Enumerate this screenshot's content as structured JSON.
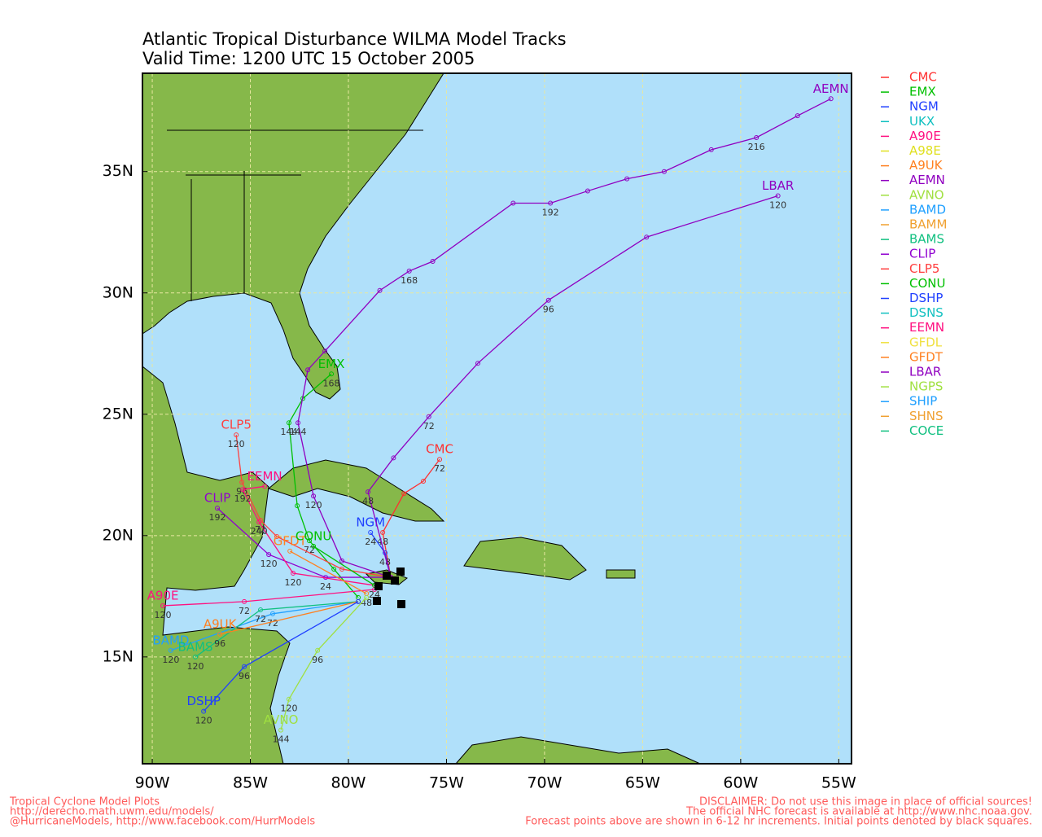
{
  "title": "Atlantic Tropical Disturbance WILMA Model Tracks",
  "subtitle": "Valid Time: 1200 UTC 15 October 2005",
  "map": {
    "type": "map",
    "xlim": [
      -90.5,
      -54.35
    ],
    "ylim": [
      10.6,
      39.05
    ],
    "xticks": [
      {
        "value": -90,
        "label": "90W"
      },
      {
        "value": -85,
        "label": "85W"
      },
      {
        "value": -80,
        "label": "80W"
      },
      {
        "value": -75,
        "label": "75W"
      },
      {
        "value": -70,
        "label": "70W"
      },
      {
        "value": -65,
        "label": "65W"
      },
      {
        "value": -60,
        "label": "60W"
      },
      {
        "value": -55,
        "label": "55W"
      }
    ],
    "yticks": [
      {
        "value": 15,
        "label": "15N"
      },
      {
        "value": 20,
        "label": "20N"
      },
      {
        "value": 25,
        "label": "25N"
      },
      {
        "value": 30,
        "label": "30N"
      },
      {
        "value": 35,
        "label": "35N"
      }
    ],
    "grid": true,
    "legend": [
      {
        "name": "CMC",
        "color": "#ff3030"
      },
      {
        "name": "EMX",
        "color": "#00c000"
      },
      {
        "name": "NGM",
        "color": "#2040ff"
      },
      {
        "name": "UKX",
        "color": "#10c0c0"
      },
      {
        "name": "A90E",
        "color": "#ff1080"
      },
      {
        "name": "A98E",
        "color": "#e0e020"
      },
      {
        "name": "A9UK",
        "color": "#ff8020"
      },
      {
        "name": "AEMN",
        "color": "#9000c0"
      },
      {
        "name": "AVNO",
        "color": "#a0e040"
      },
      {
        "name": "BAMD",
        "color": "#20a0ff"
      },
      {
        "name": "BAMM",
        "color": "#f0a030"
      },
      {
        "name": "BAMS",
        "color": "#10c080"
      },
      {
        "name": "CLIP",
        "color": "#9000d0"
      },
      {
        "name": "CLP5",
        "color": "#ff4040"
      },
      {
        "name": "CONU",
        "color": "#00c000"
      },
      {
        "name": "DSHP",
        "color": "#2040ff"
      },
      {
        "name": "DSNS",
        "color": "#10c0c0"
      },
      {
        "name": "EEMN",
        "color": "#ff1080"
      },
      {
        "name": "GFDL",
        "color": "#f0e040"
      },
      {
        "name": "GFDT",
        "color": "#ff8020"
      },
      {
        "name": "LBAR",
        "color": "#9000c0"
      },
      {
        "name": "NGPS",
        "color": "#a0e040"
      },
      {
        "name": "SHIP",
        "color": "#20a0ff"
      },
      {
        "name": "SHNS",
        "color": "#f0a030"
      },
      {
        "name": "COCE",
        "color": "#10c080"
      }
    ],
    "tracks": [
      {
        "name": "CMC",
        "color": "#ff3030",
        "lon": [
          -77.84,
          -78.25,
          -77.17,
          -76.18,
          -75.35
        ],
        "lat": [
          18.28,
          20.13,
          21.73,
          22.24,
          23.14
        ],
        "hours": [
          null,
          48,
          null,
          null,
          72
        ]
      },
      {
        "name": "EMX",
        "color": "#00c000",
        "lon": [
          -79.5,
          -80.74,
          -81.99,
          -82.61,
          -83.03,
          -82.32,
          -80.87
        ],
        "lat": [
          17.45,
          18.62,
          19.79,
          21.23,
          24.65,
          25.65,
          26.66
        ],
        "hours": [
          null,
          null,
          72,
          null,
          144,
          null,
          168
        ]
      },
      {
        "name": "NGM",
        "color": "#2040ff",
        "lon": [
          -77.84,
          -78.13,
          -78.87
        ],
        "lat": [
          18.28,
          19.29,
          20.13
        ],
        "hours": [
          null,
          48,
          24
        ]
      },
      {
        "name": "AEMN",
        "color": "#9000c0",
        "lon": [
          -77.84,
          -80.33,
          -81.78,
          -82.57,
          -82.07,
          -81.2,
          -78.4,
          -76.9,
          -75.7,
          -71.6,
          -69.7,
          -67.8,
          -65.8,
          -63.9,
          -61.5,
          -59.2,
          -57.1,
          -55.4
        ],
        "lat": [
          18.28,
          18.96,
          21.63,
          24.65,
          26.83,
          27.6,
          30.1,
          30.9,
          31.3,
          33.7,
          33.7,
          34.2,
          34.7,
          35.0,
          35.9,
          36.4,
          37.3,
          38.0
        ],
        "hours": [
          null,
          null,
          120,
          144,
          null,
          null,
          null,
          168,
          null,
          null,
          192,
          null,
          null,
          null,
          null,
          216,
          null,
          null
        ]
      },
      {
        "name": "LBAR",
        "color": "#9000c0",
        "lon": [
          -77.84,
          -79.0,
          -77.7,
          -75.9,
          -73.4,
          -69.8,
          -64.8,
          -58.1
        ],
        "lat": [
          18.28,
          21.8,
          23.2,
          24.9,
          27.1,
          29.7,
          32.3,
          34.0
        ],
        "hours": [
          null,
          48,
          null,
          72,
          null,
          96,
          null,
          120
        ]
      },
      {
        "name": "CLP5",
        "color": "#ff4040",
        "lon": [
          -77.84,
          -80.33,
          -83.65,
          -84.48,
          -85.43,
          -85.72
        ],
        "lat": [
          18.28,
          18.62,
          19.96,
          20.63,
          22.2,
          24.15
        ],
        "hours": [
          null,
          null,
          null,
          72,
          96,
          120
        ]
      },
      {
        "name": "CLIP",
        "color": "#9000d0",
        "lon": [
          -77.84,
          -81.16,
          -84.06,
          -86.68
        ],
        "lat": [
          18.28,
          18.28,
          19.22,
          21.13
        ],
        "hours": [
          null,
          24,
          120,
          192
        ]
      },
      {
        "name": "EEMN",
        "color": "#ff1080",
        "lon": [
          -78.67,
          -82.82,
          -84.56,
          -85.39,
          -84.27
        ],
        "lat": [
          17.95,
          18.45,
          20.56,
          21.9,
          22.03
        ],
        "hours": [
          null,
          120,
          240,
          192,
          null
        ]
      },
      {
        "name": "A90E",
        "color": "#ff1080",
        "lon": [
          -78.67,
          -85.31,
          -89.46
        ],
        "lat": [
          17.78,
          17.28,
          17.11
        ],
        "hours": [
          null,
          72,
          120
        ]
      },
      {
        "name": "BAMD",
        "color": "#20a0ff",
        "lon": [
          -79.5,
          -83.86,
          -89.05
        ],
        "lat": [
          17.28,
          16.78,
          15.27
        ],
        "hours": [
          null,
          72,
          120
        ]
      },
      {
        "name": "BAMS",
        "color": "#10c080",
        "lon": [
          -79.5,
          -84.48,
          -87.8
        ],
        "lat": [
          17.28,
          16.94,
          15.0
        ],
        "hours": [
          null,
          72,
          120
        ]
      },
      {
        "name": "A9UK",
        "color": "#ff8020",
        "lon": [
          -79.5,
          -86.55
        ],
        "lat": [
          17.28,
          15.94
        ],
        "hours": [
          null,
          96
        ]
      },
      {
        "name": "GFDT",
        "color": "#ff8020",
        "lon": [
          -79.08,
          -82.98
        ],
        "lat": [
          17.61,
          19.36
        ],
        "hours": [
          48,
          null
        ]
      },
      {
        "name": "CONU",
        "color": "#00c000",
        "lon": [
          -78.67,
          -81.78
        ],
        "lat": [
          17.95,
          19.56
        ],
        "hours": [
          24,
          null
        ]
      },
      {
        "name": "AVNO",
        "color": "#a0e040",
        "lon": [
          -79.08,
          -81.57,
          -83.03,
          -83.44
        ],
        "lat": [
          17.45,
          15.27,
          13.26,
          11.99
        ],
        "hours": [
          null,
          96,
          120,
          144
        ]
      },
      {
        "name": "DSHP",
        "color": "#2040ff",
        "lon": [
          -79.5,
          -85.31,
          -87.38
        ],
        "lat": [
          17.28,
          14.6,
          12.76
        ],
        "hours": [
          null,
          96,
          120
        ]
      }
    ]
  },
  "footer_left": [
    "Tropical Cyclone Model Plots",
    "http://derecho.math.uwm.edu/models/",
    "@HurricaneModels, http://www.facebook.com/HurrModels"
  ],
  "footer_right": [
    "DISCLAIMER: Do not use this image in place of official sources!",
    "The official NHC forecast is available at http://www.nhc.noaa.gov.",
    "Forecast points above are shown in 6-12 hr increments. Initial points denoted by black squares."
  ]
}
